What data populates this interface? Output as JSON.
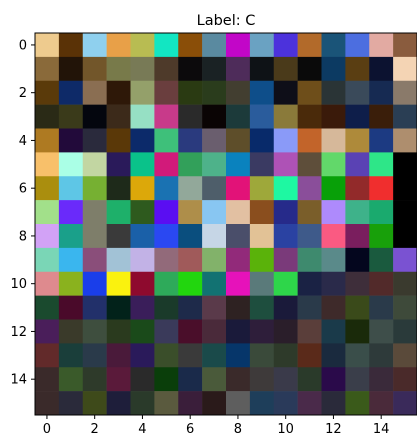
{
  "chart_data": {
    "type": "heatmap",
    "title": "Label: C",
    "xlabel": "",
    "ylabel": "",
    "xlim": [
      -0.5,
      15.5
    ],
    "ylim": [
      15.5,
      -0.5
    ],
    "x_ticks": [
      0,
      2,
      4,
      6,
      8,
      10,
      12,
      14
    ],
    "y_ticks": [
      0,
      2,
      4,
      6,
      8,
      10,
      12,
      14
    ],
    "grid": false,
    "rows": 16,
    "cols": 16,
    "pixels": [
      [
        "#eecb8e",
        "#5a3206",
        "#8fd0ee",
        "#e8a048",
        "#b8bc52",
        "#12e6c2",
        "#8a4e08",
        "#5a8aa0",
        "#c206c8",
        "#6aa2c2",
        "#4c32dc",
        "#b26a2a",
        "#1a5478",
        "#4c6ee0",
        "#e2aaa2",
        "#8a5c3e"
      ],
      [
        "#8a6a3a",
        "#221408",
        "#72562a",
        "#787a4a",
        "#787a56",
        "#4e3a2a",
        "#0c0a0c",
        "#1a2224",
        "#4e2c5a",
        "#0e1216",
        "#4a3a1a",
        "#0a0a0a",
        "#0c3a62",
        "#5a3e12",
        "#0c1230",
        "#f4d4b4"
      ],
      [
        "#5a3a0a",
        "#0e2a68",
        "#8a6e52",
        "#2e1808",
        "#94a06a",
        "#6a3e3e",
        "#2a3a12",
        "#2a3c1c",
        "#423e30",
        "#0e4e8a",
        "#0e0e18",
        "#6e4e1a",
        "#2a3436",
        "#3a4a5a",
        "#162a52",
        "#8a7a6a"
      ],
      [
        "#2a2a16",
        "#3a3a1a",
        "#04060e",
        "#3c2a1a",
        "#96e0c4",
        "#c83a8a",
        "#2a2a2a",
        "#0a0404",
        "#1c3a3a",
        "#2a5c9c",
        "#8a7a3a",
        "#4a2a0a",
        "#3a1a0a",
        "#0e1e4a",
        "#3a1e0a",
        "#2a3e54"
      ],
      [
        "#ae7a22",
        "#220a3a",
        "#2a2a3c",
        "#5a3808",
        "#0c2a6a",
        "#3ec07a",
        "#2a3a7e",
        "#6a5e6e",
        "#5e4e2a",
        "#082a6a",
        "#8a9af8",
        "#c2642a",
        "#d6b89a",
        "#ae8a3a",
        "#1c3a82",
        "#ae8e6e"
      ],
      [
        "#f8c06a",
        "#aaffe6",
        "#c2d6a2",
        "#2a1a5a",
        "#0ac28a",
        "#d21a7a",
        "#32a05a",
        "#4eb28a",
        "#0a82be",
        "#3a3a62",
        "#ae52b6",
        "#5e4e3a",
        "#62d86a",
        "#5a42b4",
        "#2ee688",
        "#000000"
      ],
      [
        "#aa8e0e",
        "#5ec6e6",
        "#76b032",
        "#1e2a1a",
        "#dca80a",
        "#1a72b2",
        "#92a89a",
        "#4e5e6a",
        "#e21278",
        "#9ea83a",
        "#1ef8a2",
        "#8a4e9a",
        "#08a008",
        "#922a2a",
        "#f02e2e",
        "#000000"
      ],
      [
        "#a2e08a",
        "#6a2afa",
        "#7e7e6a",
        "#1eb06a",
        "#2e5a1e",
        "#5a0ef2",
        "#ae8e4a",
        "#88c6f2",
        "#e2c0a2",
        "#8a4e1e",
        "#262a8a",
        "#7a5e2a",
        "#ae8afc",
        "#3eb28a",
        "#1aaa6e",
        "#000000"
      ],
      [
        "#d2a2f6",
        "#1aa08a",
        "#7e7e6a",
        "#3a3a3a",
        "#1a60a8",
        "#2a48f2",
        "#0a4e7e",
        "#c6d6e6",
        "#4a4e6a",
        "#e2c296",
        "#2a42a2",
        "#3e5a8a",
        "#fa5a82",
        "#7a1e5e",
        "#18a00a",
        "#000000"
      ],
      [
        "#7ad6b6",
        "#3ab6ee",
        "#8a4e7a",
        "#a2c2d6",
        "#c2b2e6",
        "#926a7a",
        "#a05a5a",
        "#82b26a",
        "#922a7a",
        "#5ab20a",
        "#7a3a7a",
        "#3e8a6e",
        "#5a8a8a",
        "#04061e",
        "#1a5a3e",
        "#7a52d2"
      ],
      [
        "#de8a8e",
        "#8ab21e",
        "#1a3eea",
        "#faf20e",
        "#8e0a2e",
        "#2eaa5a",
        "#22d60e",
        "#127272",
        "#e612ba",
        "#5a7a7a",
        "#2ed64a",
        "#1a2244",
        "#2a2a4a",
        "#3e2e3a",
        "#522a2a",
        "#3a3a2e"
      ],
      [
        "#1a4a2e",
        "#4a0a2a",
        "#22306a",
        "#02221a",
        "#3a1e5a",
        "#1a3a2a",
        "#1e2a4a",
        "#5a3a4a",
        "#2e2222",
        "#1e4e3e",
        "#1a1a3a",
        "#2a3a4a",
        "#3e2a2a",
        "#3a4a1a",
        "#2a3a4a",
        "#3e4a3a"
      ],
      [
        "#4a1e5a",
        "#3a3a2a",
        "#3e4e3e",
        "#2a3a1e",
        "#1a4a1a",
        "#3a3a5a",
        "#4a0e2a",
        "#4a2a3a",
        "#1a1a3a",
        "#2e1e3a",
        "#2a1e2a",
        "#5a3e3a",
        "#1a3a4a",
        "#1a2a0a",
        "#3e4e4a",
        "#2a3a3a"
      ],
      [
        "#622a2a",
        "#1a3e3a",
        "#2a3a4a",
        "#4a1a3a",
        "#2a1a5a",
        "#3a4e2a",
        "#3a3a3a",
        "#1a4a4a",
        "#06366a",
        "#3a4a3a",
        "#2e3a2a",
        "#5a2a1a",
        "#1a2a3e",
        "#3a4e4a",
        "#2e3a3a",
        "#5a4a3a"
      ],
      [
        "#3a2a2a",
        "#3a5a2a",
        "#2e3a2a",
        "#5a1a3a",
        "#2a2a2a",
        "#0a3e0a",
        "#1a2a4a",
        "#4a5a3a",
        "#3a2a2a",
        "#3e3a3a",
        "#3a3a4a",
        "#2a3a2a",
        "#2a0a4a",
        "#3a3e4a",
        "#3a2a3a",
        "#4a2a2a"
      ],
      [
        "#3a2a2a",
        "#2a2a3a",
        "#3e4a1a",
        "#1e1e3a",
        "#2a3a2a",
        "#5a5a3e",
        "#3a1e3a",
        "#2a1a1a",
        "#5e5e5e",
        "#1e3e5a",
        "#2a3a5a",
        "#4a2a4a",
        "#2a2a3a",
        "#3a5a1a",
        "#4a2a3a",
        "#3a2a5a"
      ]
    ]
  }
}
